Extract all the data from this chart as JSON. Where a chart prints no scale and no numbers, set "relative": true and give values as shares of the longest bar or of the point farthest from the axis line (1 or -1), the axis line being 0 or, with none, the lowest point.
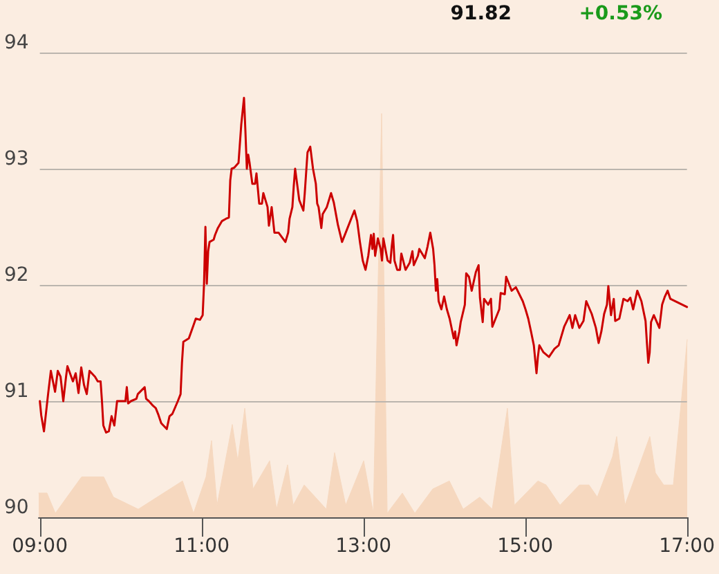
{
  "chart_data": [
    {
      "type": "line",
      "annotations": [
        "91.82",
        "+0.53%"
      ],
      "x": [
        9.0,
        9.017,
        9.051,
        9.102,
        9.136,
        9.188,
        9.222,
        9.256,
        9.29,
        9.324,
        9.341,
        9.409,
        9.443,
        9.478,
        9.512,
        9.546,
        9.58,
        9.614,
        9.682,
        9.716,
        9.751,
        9.768,
        9.785,
        9.819,
        9.853,
        9.887,
        9.921,
        9.955,
        10.024,
        10.058,
        10.075,
        10.092,
        10.126,
        10.194,
        10.211,
        10.296,
        10.314,
        10.348,
        10.399,
        10.433,
        10.467,
        10.501,
        10.569,
        10.603,
        10.638,
        10.706,
        10.74,
        10.757,
        10.774,
        10.842,
        10.893,
        10.928,
        10.979,
        11.013,
        11.03,
        11.047,
        11.064,
        11.081,
        11.098,
        11.149,
        11.166,
        11.201,
        11.252,
        11.303,
        11.337,
        11.354,
        11.371,
        11.405,
        11.456,
        11.49,
        11.524,
        11.541,
        11.559,
        11.576,
        11.593,
        11.627,
        11.661,
        11.678,
        11.712,
        11.746,
        11.763,
        11.815,
        11.832,
        11.866,
        11.9,
        11.951,
        12.036,
        12.07,
        12.087,
        12.122,
        12.139,
        12.156,
        12.207,
        12.258,
        12.275,
        12.309,
        12.343,
        12.377,
        12.412,
        12.429,
        12.446,
        12.48,
        12.497,
        12.548,
        12.6,
        12.634,
        12.684,
        12.736,
        12.821,
        12.889,
        12.923,
        12.957,
        12.992,
        13.026,
        13.06,
        13.094,
        13.111,
        13.128,
        13.145,
        13.179,
        13.213,
        13.23,
        13.247,
        13.299,
        13.333,
        13.35,
        13.367,
        13.384,
        13.418,
        13.452,
        13.469,
        13.521,
        13.572,
        13.606,
        13.623,
        13.674,
        13.691,
        13.759,
        13.793,
        13.827,
        13.862,
        13.879,
        13.896,
        13.913,
        13.93,
        13.964,
        13.998,
        14.032,
        14.066,
        14.117,
        14.134,
        14.151,
        14.186,
        14.203,
        14.254,
        14.271,
        14.305,
        14.339,
        14.39,
        14.424,
        14.441,
        14.475,
        14.492,
        14.543,
        14.577,
        14.594,
        14.68,
        14.697,
        14.748,
        14.765,
        14.799,
        14.833,
        14.885,
        14.97,
        15.004,
        15.038,
        15.072,
        15.107,
        15.14,
        15.157,
        15.175,
        15.226,
        15.294,
        15.362,
        15.414,
        15.482,
        15.516,
        15.55,
        15.584,
        15.618,
        15.669,
        15.721,
        15.755,
        15.823,
        15.874,
        15.908,
        15.942,
        15.976,
        16.011,
        16.028,
        16.061,
        16.095,
        16.113,
        16.164,
        16.215,
        16.266,
        16.3,
        16.335,
        16.386,
        16.437,
        16.488,
        16.505,
        16.522,
        16.539,
        16.556,
        16.59,
        16.659,
        16.693,
        16.727,
        16.761,
        16.795,
        17.0
      ],
      "series": [
        {
          "color": "#cc0000",
          "values": [
            91.0,
            90.88,
            90.74,
            91.06,
            91.26,
            91.08,
            91.26,
            91.21,
            91.0,
            91.21,
            91.3,
            91.17,
            91.24,
            91.07,
            91.29,
            91.14,
            91.06,
            91.26,
            91.21,
            91.17,
            91.17,
            91.0,
            90.79,
            90.73,
            90.74,
            90.87,
            90.79,
            91.0,
            91.0,
            91.0,
            91.12,
            90.98,
            91.0,
            91.02,
            91.06,
            91.12,
            91.02,
            91.0,
            90.96,
            90.94,
            90.88,
            90.81,
            90.76,
            90.87,
            90.89,
            91.0,
            91.06,
            91.33,
            91.51,
            91.54,
            91.64,
            91.71,
            91.7,
            91.74,
            92.01,
            92.5,
            92.01,
            92.29,
            92.37,
            92.39,
            92.43,
            92.49,
            92.55,
            92.57,
            92.58,
            92.9,
            93.0,
            93.01,
            93.05,
            93.38,
            93.61,
            93.33,
            93.0,
            93.12,
            93.05,
            92.87,
            92.87,
            92.96,
            92.7,
            92.7,
            92.79,
            92.67,
            92.51,
            92.67,
            92.45,
            92.45,
            92.37,
            92.45,
            92.57,
            92.67,
            92.85,
            93.0,
            92.73,
            92.64,
            92.79,
            93.14,
            93.19,
            93.0,
            92.87,
            92.7,
            92.67,
            92.49,
            92.61,
            92.67,
            92.79,
            92.71,
            92.52,
            92.37,
            92.52,
            92.64,
            92.55,
            92.37,
            92.21,
            92.13,
            92.25,
            92.43,
            92.31,
            92.44,
            92.25,
            92.4,
            92.31,
            92.21,
            92.4,
            92.21,
            92.19,
            92.33,
            92.43,
            92.21,
            92.13,
            92.13,
            92.27,
            92.13,
            92.19,
            92.29,
            92.17,
            92.25,
            92.31,
            92.23,
            92.33,
            92.45,
            92.31,
            92.17,
            91.95,
            92.05,
            91.86,
            91.79,
            91.9,
            91.79,
            91.71,
            91.54,
            91.6,
            91.48,
            91.6,
            91.68,
            91.83,
            92.1,
            92.07,
            91.95,
            92.11,
            92.17,
            91.89,
            91.68,
            91.88,
            91.83,
            91.88,
            91.64,
            91.79,
            91.93,
            91.92,
            92.07,
            92.01,
            91.95,
            91.98,
            91.86,
            91.79,
            91.71,
            91.6,
            91.48,
            91.24,
            91.38,
            91.48,
            91.42,
            91.38,
            91.45,
            91.48,
            91.64,
            91.69,
            91.74,
            91.63,
            91.74,
            91.63,
            91.69,
            91.86,
            91.75,
            91.63,
            91.5,
            91.6,
            91.75,
            91.83,
            91.99,
            91.74,
            91.88,
            91.69,
            91.71,
            91.88,
            91.86,
            91.89,
            91.79,
            91.95,
            91.86,
            91.69,
            91.5,
            91.33,
            91.42,
            91.68,
            91.74,
            91.63,
            91.83,
            91.9,
            91.95,
            91.88,
            91.81
          ]
        }
      ],
      "xlim": [
        9,
        17
      ],
      "xticks": [
        {
          "value": 9,
          "label": "09:00"
        },
        {
          "value": 11,
          "label": "11:00"
        },
        {
          "value": 13,
          "label": "13:00"
        },
        {
          "value": 15,
          "label": "15:00"
        },
        {
          "value": 17,
          "label": "17:00"
        }
      ],
      "ylim": [
        90,
        94
      ],
      "yticks": [
        90,
        91,
        92,
        93,
        94
      ],
      "grid": "y"
    },
    {
      "type": "area",
      "relative": true,
      "xlim": [
        9,
        17
      ],
      "x": [
        9.0,
        9.102,
        9.205,
        9.529,
        9.802,
        9.921,
        10.228,
        10.774,
        10.91,
        11.064,
        11.132,
        11.2,
        11.388,
        11.456,
        11.542,
        11.644,
        11.849,
        11.934,
        12.07,
        12.139,
        12.275,
        12.548,
        12.65,
        12.787,
        13.009,
        13.128,
        13.23,
        13.299,
        13.486,
        13.64,
        13.861,
        14.066,
        14.236,
        14.441,
        14.595,
        14.782,
        14.868,
        15.158,
        15.26,
        15.431,
        15.67,
        15.789,
        15.891,
        16.079,
        16.13,
        16.232,
        16.539,
        16.608,
        16.71,
        16.829,
        17.0
      ],
      "series": [
        {
          "color": "#f6d8bf",
          "values": [
            0.06,
            0.06,
            0.01,
            0.1,
            0.1,
            0.05,
            0.02,
            0.09,
            0.01,
            0.1,
            0.19,
            0.03,
            0.23,
            0.14,
            0.27,
            0.07,
            0.14,
            0.02,
            0.13,
            0.03,
            0.08,
            0.02,
            0.16,
            0.03,
            0.14,
            0.01,
            1,
            0.01,
            0.06,
            0.01,
            0.07,
            0.09,
            0.02,
            0.05,
            0.02,
            0.27,
            0.03,
            0.09,
            0.08,
            0.03,
            0.08,
            0.08,
            0.05,
            0.15,
            0.2,
            0.03,
            0.2,
            0.11,
            0.08,
            0.08,
            0.44
          ]
        }
      ]
    }
  ]
}
